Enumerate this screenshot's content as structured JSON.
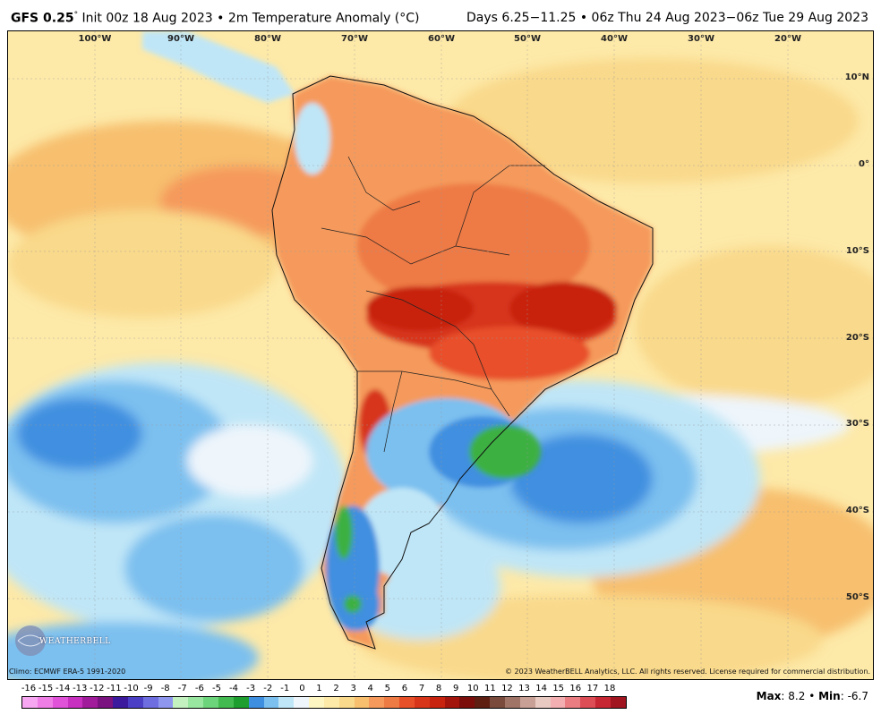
{
  "header": {
    "model": "GFS 0.25",
    "degree_sign": "°",
    "init": "Init 00z 18 Aug 2023",
    "bullet": "•",
    "field": "2m Temperature Anomaly (°C)",
    "range": "Days 6.25−11.25 • 06z Thu 24 Aug 2023−06z Tue 29 Aug 2023"
  },
  "map": {
    "lon_labels": [
      "100°W",
      "90°W",
      "80°W",
      "70°W",
      "60°W",
      "50°W",
      "40°W",
      "30°W",
      "20°W"
    ],
    "lat_labels": [
      "10°N",
      "0°",
      "10°S",
      "20°S",
      "30°S",
      "40°S",
      "50°S"
    ],
    "colors": {
      "ocean_warm": "#f9d98b",
      "ocean_mild": "#fde9a8",
      "land_hot": "#e8502a",
      "land_very_hot": "#c8230f",
      "land_warm": "#f59a5c",
      "cool_light": "#bfe6f7",
      "cool_mid": "#7cc0ef",
      "cool_deep": "#3f8fe0",
      "cold_green": "#3cb043",
      "neutral": "#f4f6fb"
    }
  },
  "footer": {
    "climo": "Climo: ECMWF ERA-5 1991-2020",
    "copyright": "© 2023 WeatherBELL Analytics, LLC. All rights reserved. License required for commercial distribution.",
    "logo_text": "WEATHERBELL"
  },
  "scale": {
    "labels": [
      "-16",
      "-15",
      "-14",
      "-13",
      "-12",
      "-11",
      "-10",
      "-9",
      "-8",
      "-7",
      "-6",
      "-5",
      "-4",
      "-3",
      "-2",
      "-1",
      "0",
      "1",
      "2",
      "3",
      "4",
      "5",
      "6",
      "7",
      "8",
      "9",
      "10",
      "11",
      "12",
      "13",
      "14",
      "15",
      "16",
      "17",
      "18"
    ],
    "colors": [
      "#f7a6f2",
      "#ef7de6",
      "#e052d8",
      "#c830c0",
      "#a11c9a",
      "#7a1280",
      "#3b1a9e",
      "#4b3fc6",
      "#6f6ee0",
      "#8f96ee",
      "#c3f1c0",
      "#99e6a0",
      "#6cd47a",
      "#43bb50",
      "#1d9e2e",
      "#3f8fe0",
      "#7cc0ef",
      "#bfe6f7",
      "#eef5fb",
      "#fdf6c2",
      "#fde9a8",
      "#f9d98b",
      "#f7bf6e",
      "#f59a5c",
      "#ee7a44",
      "#e8502a",
      "#d7361a",
      "#c8230f",
      "#a3150c",
      "#7b0d0a",
      "#5e1e12",
      "#7a4a3d",
      "#a07466",
      "#c8a096",
      "#e8cac2",
      "#f2aeb0",
      "#e97d82",
      "#dc4d56",
      "#c72733",
      "#a11521"
    ],
    "max_label": "Max",
    "max_value": "8.2",
    "sep": "•",
    "min_label": "Min",
    "min_value": "-6.7"
  }
}
